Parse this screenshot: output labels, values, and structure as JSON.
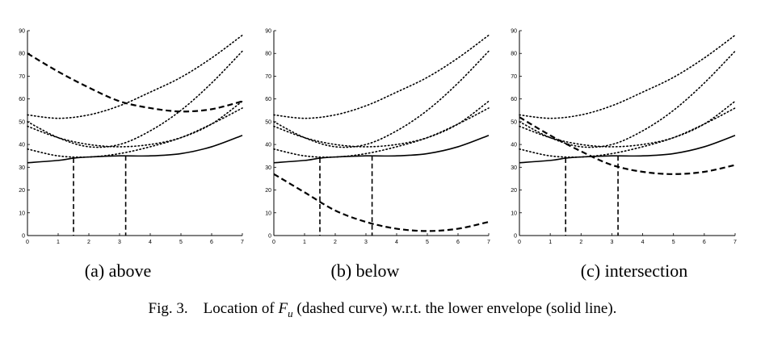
{
  "caption": {
    "prefix": "Fig. 3.",
    "before_symbol": "Location of ",
    "symbol": "F",
    "subscript": "u",
    "after_symbol": " (dashed curve) w.r.t. the lower envelope (solid line)."
  },
  "chart_data": [
    {
      "type": "line",
      "panel": "a",
      "subcaption": "(a) above",
      "xlim": [
        0,
        7
      ],
      "ylim": [
        0,
        90
      ],
      "x_ticks": [
        0,
        1,
        2,
        3,
        4,
        5,
        6,
        7
      ],
      "y_ticks": [
        0,
        10,
        20,
        30,
        40,
        50,
        60,
        70,
        80,
        90
      ],
      "grid": false,
      "series": [
        {
          "style": "dotted",
          "points": [
            [
              0,
              53
            ],
            [
              1,
              51.5
            ],
            [
              2,
              53
            ],
            [
              3,
              57
            ],
            [
              4,
              63
            ],
            [
              5,
              69.5
            ],
            [
              6,
              78
            ],
            [
              7,
              88
            ]
          ]
        },
        {
          "style": "dotted",
          "points": [
            [
              0,
              50
            ],
            [
              1,
              43
            ],
            [
              2,
              39
            ],
            [
              3,
              40
            ],
            [
              4,
              46
            ],
            [
              5,
              55
            ],
            [
              6,
              67
            ],
            [
              7,
              81
            ]
          ]
        },
        {
          "style": "dotted",
          "points": [
            [
              0,
              48
            ],
            [
              1,
              43
            ],
            [
              2,
              40
            ],
            [
              3,
              39
            ],
            [
              4,
              40
            ],
            [
              5,
              43
            ],
            [
              6,
              49
            ],
            [
              7,
              59
            ]
          ]
        },
        {
          "style": "dotted",
          "points": [
            [
              0,
              38
            ],
            [
              1,
              35
            ],
            [
              2,
              34.5
            ],
            [
              3,
              36
            ],
            [
              4,
              39
            ],
            [
              5,
              43
            ],
            [
              6,
              49
            ],
            [
              7,
              56
            ]
          ]
        },
        {
          "style": "solid",
          "points": [
            [
              0,
              32
            ],
            [
              1,
              33
            ],
            [
              1.5,
              34
            ],
            [
              2,
              34.5
            ],
            [
              3,
              35
            ],
            [
              4,
              35
            ],
            [
              5,
              36
            ],
            [
              6,
              39
            ],
            [
              7,
              44
            ]
          ]
        },
        {
          "style": "dashed",
          "points": [
            [
              0,
              80
            ],
            [
              1,
              72
            ],
            [
              2,
              65
            ],
            [
              3,
              59
            ],
            [
              4,
              56
            ],
            [
              5,
              54.5
            ],
            [
              6,
              55.5
            ],
            [
              7,
              59
            ]
          ]
        }
      ],
      "vertical_lines": [
        {
          "x": 1.5,
          "y_top": 34
        },
        {
          "x": 3.2,
          "y_top": 35
        }
      ]
    },
    {
      "type": "line",
      "panel": "b",
      "subcaption": "(b) below",
      "xlim": [
        0,
        7
      ],
      "ylim": [
        0,
        90
      ],
      "x_ticks": [
        0,
        1,
        2,
        3,
        4,
        5,
        6,
        7
      ],
      "y_ticks": [
        0,
        10,
        20,
        30,
        40,
        50,
        60,
        70,
        80,
        90
      ],
      "grid": false,
      "series": [
        {
          "style": "dotted",
          "points": [
            [
              0,
              53
            ],
            [
              1,
              51.5
            ],
            [
              2,
              53
            ],
            [
              3,
              57
            ],
            [
              4,
              63
            ],
            [
              5,
              69.5
            ],
            [
              6,
              78
            ],
            [
              7,
              88
            ]
          ]
        },
        {
          "style": "dotted",
          "points": [
            [
              0,
              50
            ],
            [
              1,
              43
            ],
            [
              2,
              39
            ],
            [
              3,
              40
            ],
            [
              4,
              46
            ],
            [
              5,
              55
            ],
            [
              6,
              67
            ],
            [
              7,
              81
            ]
          ]
        },
        {
          "style": "dotted",
          "points": [
            [
              0,
              48
            ],
            [
              1,
              43
            ],
            [
              2,
              40
            ],
            [
              3,
              39
            ],
            [
              4,
              40
            ],
            [
              5,
              43
            ],
            [
              6,
              49
            ],
            [
              7,
              59
            ]
          ]
        },
        {
          "style": "dotted",
          "points": [
            [
              0,
              38
            ],
            [
              1,
              35
            ],
            [
              2,
              34.5
            ],
            [
              3,
              36
            ],
            [
              4,
              39
            ],
            [
              5,
              43
            ],
            [
              6,
              49
            ],
            [
              7,
              56
            ]
          ]
        },
        {
          "style": "solid",
          "points": [
            [
              0,
              32
            ],
            [
              1,
              33
            ],
            [
              1.5,
              34
            ],
            [
              2,
              34.5
            ],
            [
              3,
              35
            ],
            [
              4,
              35
            ],
            [
              5,
              36
            ],
            [
              6,
              39
            ],
            [
              7,
              44
            ]
          ]
        },
        {
          "style": "dashed",
          "points": [
            [
              0,
              27
            ],
            [
              1,
              19
            ],
            [
              2,
              11
            ],
            [
              3,
              6
            ],
            [
              4,
              3
            ],
            [
              5,
              2
            ],
            [
              6,
              3
            ],
            [
              7,
              6
            ]
          ]
        }
      ],
      "vertical_lines": [
        {
          "x": 1.5,
          "y_top": 34
        },
        {
          "x": 3.2,
          "y_top": 35
        }
      ]
    },
    {
      "type": "line",
      "panel": "c",
      "subcaption": "(c) intersection",
      "xlim": [
        0,
        7
      ],
      "ylim": [
        0,
        90
      ],
      "x_ticks": [
        0,
        1,
        2,
        3,
        4,
        5,
        6,
        7
      ],
      "y_ticks": [
        0,
        10,
        20,
        30,
        40,
        50,
        60,
        70,
        80,
        90
      ],
      "grid": false,
      "series": [
        {
          "style": "dotted",
          "points": [
            [
              0,
              53
            ],
            [
              1,
              51.5
            ],
            [
              2,
              53
            ],
            [
              3,
              57
            ],
            [
              4,
              63
            ],
            [
              5,
              69.5
            ],
            [
              6,
              78
            ],
            [
              7,
              88
            ]
          ]
        },
        {
          "style": "dotted",
          "points": [
            [
              0,
              50
            ],
            [
              1,
              43
            ],
            [
              2,
              39
            ],
            [
              3,
              40
            ],
            [
              4,
              46
            ],
            [
              5,
              55
            ],
            [
              6,
              67
            ],
            [
              7,
              81
            ]
          ]
        },
        {
          "style": "dotted",
          "points": [
            [
              0,
              48
            ],
            [
              1,
              43
            ],
            [
              2,
              40
            ],
            [
              3,
              39
            ],
            [
              4,
              40
            ],
            [
              5,
              43
            ],
            [
              6,
              49
            ],
            [
              7,
              59
            ]
          ]
        },
        {
          "style": "dotted",
          "points": [
            [
              0,
              38
            ],
            [
              1,
              35
            ],
            [
              2,
              34.5
            ],
            [
              3,
              36
            ],
            [
              4,
              39
            ],
            [
              5,
              43
            ],
            [
              6,
              49
            ],
            [
              7,
              56
            ]
          ]
        },
        {
          "style": "solid",
          "points": [
            [
              0,
              32
            ],
            [
              1,
              33
            ],
            [
              1.5,
              34
            ],
            [
              2,
              34.5
            ],
            [
              3,
              35
            ],
            [
              4,
              35
            ],
            [
              5,
              36
            ],
            [
              6,
              39
            ],
            [
              7,
              44
            ]
          ]
        },
        {
          "style": "dashed",
          "points": [
            [
              0,
              52
            ],
            [
              1,
              44
            ],
            [
              2,
              37
            ],
            [
              3,
              31
            ],
            [
              4,
              28
            ],
            [
              5,
              27
            ],
            [
              6,
              28
            ],
            [
              7,
              31
            ]
          ]
        }
      ],
      "vertical_lines": [
        {
          "x": 1.5,
          "y_top": 34
        },
        {
          "x": 3.2,
          "y_top": 35
        }
      ]
    }
  ]
}
